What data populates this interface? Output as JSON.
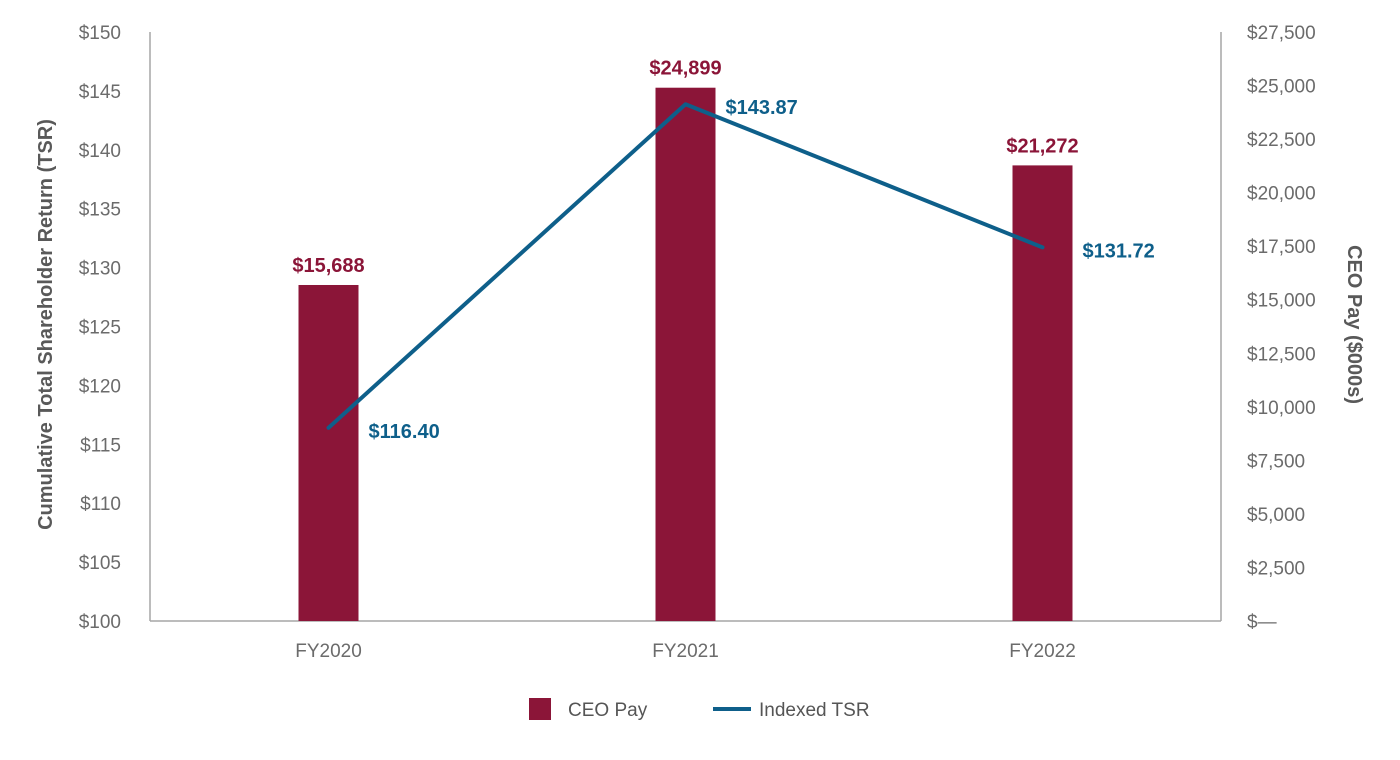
{
  "chart_data": {
    "type": "bar",
    "categories": [
      "FY2020",
      "FY2021",
      "FY2022"
    ],
    "series": [
      {
        "name": "CEO Pay",
        "kind": "bar",
        "axis": "right",
        "values": [
          15688,
          24899,
          21272
        ],
        "labels": [
          "$15,688",
          "$24,899",
          "$21,272"
        ],
        "color": "#8b1538"
      },
      {
        "name": "Indexed TSR",
        "kind": "line",
        "axis": "left",
        "values": [
          116.4,
          143.87,
          131.72
        ],
        "labels": [
          "$116.40",
          "$143.87",
          "$131.72"
        ],
        "color": "#0e5f8a"
      }
    ],
    "y_left": {
      "label": "Cumulative Total Shareholder Return (TSR)",
      "range": [
        100,
        150
      ],
      "ticks": [
        {
          "value": 100,
          "label": "$100"
        },
        {
          "value": 105,
          "label": "$105"
        },
        {
          "value": 110,
          "label": "$110"
        },
        {
          "value": 115,
          "label": "$115"
        },
        {
          "value": 120,
          "label": "$120"
        },
        {
          "value": 125,
          "label": "$125"
        },
        {
          "value": 130,
          "label": "$130"
        },
        {
          "value": 135,
          "label": "$135"
        },
        {
          "value": 140,
          "label": "$140"
        },
        {
          "value": 145,
          "label": "$145"
        },
        {
          "value": 150,
          "label": "$150"
        }
      ]
    },
    "y_right": {
      "label": "CEO Pay ($000s)",
      "range": [
        0,
        27500
      ],
      "ticks": [
        {
          "value": 0,
          "label": "$—"
        },
        {
          "value": 2500,
          "label": "$2,500"
        },
        {
          "value": 5000,
          "label": "$5,000"
        },
        {
          "value": 7500,
          "label": "$7,500"
        },
        {
          "value": 10000,
          "label": "$10,000"
        },
        {
          "value": 12500,
          "label": "$12,500"
        },
        {
          "value": 15000,
          "label": "$15,000"
        },
        {
          "value": 17500,
          "label": "$17,500"
        },
        {
          "value": 20000,
          "label": "$20,000"
        },
        {
          "value": 22500,
          "label": "$22,500"
        },
        {
          "value": 25000,
          "label": "$25,000"
        },
        {
          "value": 27500,
          "label": "$27,500"
        }
      ]
    },
    "grid": false,
    "legend": {
      "position": "bottom-center",
      "items": [
        {
          "label": "CEO Pay",
          "symbol": "square"
        },
        {
          "label": "Indexed TSR",
          "symbol": "line"
        }
      ]
    }
  }
}
